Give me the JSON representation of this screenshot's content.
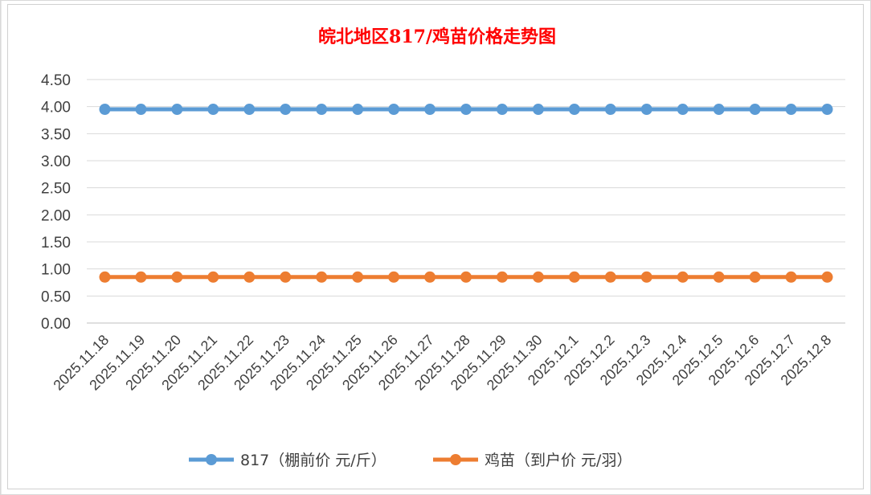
{
  "chart_data": {
    "type": "line",
    "title": "皖北地区817/鸡苗价格走势图",
    "x": [
      "2025.11.18",
      "2025.11.19",
      "2025.11.20",
      "2025.11.21",
      "2025.11.22",
      "2025.11.23",
      "2025.11.24",
      "2025.11.25",
      "2025.11.26",
      "2025.11.27",
      "2025.11.28",
      "2025.11.29",
      "2025.11.30",
      "2025.12.1",
      "2025.12.2",
      "2025.12.3",
      "2025.12.4",
      "2025.12.5",
      "2025.12.6",
      "2025.12.7",
      "2025.12.8"
    ],
    "yticks": [
      "0.00",
      "0.50",
      "1.00",
      "1.50",
      "2.00",
      "2.50",
      "3.00",
      "3.50",
      "4.00",
      "4.50"
    ],
    "ylim": [
      0,
      4.5
    ],
    "grid": true,
    "legend": "bottom",
    "series": [
      {
        "name": "817（棚前价 元/斤）",
        "color": "#5b9bd5",
        "values": [
          3.95,
          3.95,
          3.95,
          3.95,
          3.95,
          3.95,
          3.95,
          3.95,
          3.95,
          3.95,
          3.95,
          3.95,
          3.95,
          3.95,
          3.95,
          3.95,
          3.95,
          3.95,
          3.95,
          3.95,
          3.95
        ]
      },
      {
        "name": "鸡苗（到户价 元/羽）",
        "color": "#ed7d31",
        "values": [
          0.85,
          0.85,
          0.85,
          0.85,
          0.85,
          0.85,
          0.85,
          0.85,
          0.85,
          0.85,
          0.85,
          0.85,
          0.85,
          0.85,
          0.85,
          0.85,
          0.85,
          0.85,
          0.85,
          0.85,
          0.85
        ]
      }
    ]
  }
}
